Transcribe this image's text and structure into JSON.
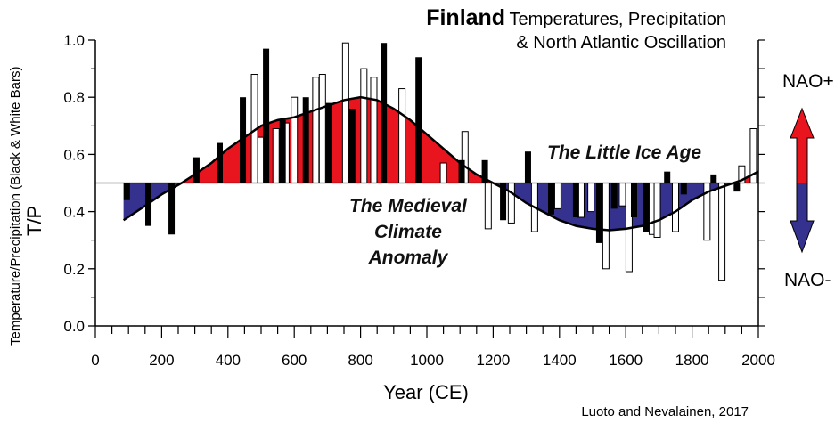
{
  "chart_data": {
    "type": "bar",
    "title": "Finland",
    "subtitle": "Temperatures, Precipitation",
    "subtitle2": "& North Atlantic Oscillation",
    "xlabel": "Year (CE)",
    "ylabel": "T/P",
    "ylabel_secondary": "Temperature/Precipitation (Black & White Bars)",
    "xlim": [
      0,
      2000
    ],
    "ylim": [
      0.0,
      1.0
    ],
    "baseline": 0.5,
    "x_ticks": [
      "0",
      "200",
      "400",
      "600",
      "800",
      "1000",
      "1200",
      "1400",
      "1600",
      "1800",
      "2000"
    ],
    "y_ticks": [
      "0.0",
      "0.2",
      "0.4",
      "0.6",
      "0.8",
      "1.0"
    ],
    "nao_labels": {
      "positive": "NAO+",
      "negative": "NAO-"
    },
    "colors": {
      "positive_fill": "#e8141e",
      "negative_fill": "#35318f",
      "arrow_up": "#e8141e",
      "arrow_down": "#35318f",
      "black_bar": "#000000",
      "white_bar": "#ffffff"
    },
    "annotations": {
      "mca_line1": "The Medieval",
      "mca_line2": "Climate",
      "mca_line3": "Anomaly",
      "lia": "The Little Ice Age"
    },
    "credit": "Luoto and Nevalainen, 2017",
    "series": [
      {
        "name": "NAO curve",
        "type": "area",
        "x": [
          85,
          150,
          200,
          260,
          300,
          350,
          400,
          450,
          500,
          550,
          600,
          650,
          700,
          750,
          800,
          850,
          900,
          950,
          1000,
          1050,
          1100,
          1150,
          1200,
          1250,
          1300,
          1350,
          1400,
          1450,
          1500,
          1550,
          1600,
          1650,
          1700,
          1750,
          1800,
          1850,
          1900,
          1950,
          2000
        ],
        "values": [
          0.37,
          0.42,
          0.46,
          0.5,
          0.53,
          0.57,
          0.62,
          0.66,
          0.7,
          0.72,
          0.73,
          0.75,
          0.77,
          0.79,
          0.8,
          0.79,
          0.76,
          0.72,
          0.67,
          0.62,
          0.57,
          0.53,
          0.5,
          0.47,
          0.43,
          0.4,
          0.37,
          0.35,
          0.34,
          0.335,
          0.34,
          0.35,
          0.37,
          0.4,
          0.44,
          0.47,
          0.49,
          0.51,
          0.54
        ]
      },
      {
        "name": "Temperature",
        "color": "black",
        "x": [
          95,
          160,
          230,
          305,
          375,
          445,
          515,
          565,
          635,
          705,
          775,
          870,
          975,
          1105,
          1175,
          1230,
          1305,
          1375,
          1450,
          1520,
          1565,
          1625,
          1660,
          1725,
          1775,
          1865,
          1935
        ],
        "values": [
          0.44,
          0.35,
          0.32,
          0.59,
          0.64,
          0.8,
          0.97,
          0.72,
          0.8,
          0.78,
          0.76,
          0.99,
          0.94,
          0.58,
          0.58,
          0.37,
          0.61,
          0.39,
          0.38,
          0.29,
          0.41,
          0.38,
          0.33,
          0.54,
          0.46,
          0.53,
          0.47
        ]
      },
      {
        "name": "Precipitation",
        "color": "white",
        "x": [
          480,
          500,
          545,
          575,
          600,
          665,
          685,
          755,
          810,
          840,
          925,
          1050,
          1115,
          1185,
          1255,
          1325,
          1395,
          1465,
          1495,
          1540,
          1590,
          1610,
          1680,
          1695,
          1750,
          1845,
          1890,
          1950,
          1985
        ],
        "values": [
          0.88,
          0.66,
          0.69,
          0.71,
          0.8,
          0.87,
          0.88,
          0.99,
          0.9,
          0.87,
          0.83,
          0.57,
          0.68,
          0.34,
          0.36,
          0.33,
          0.41,
          0.38,
          0.4,
          0.2,
          0.42,
          0.19,
          0.32,
          0.31,
          0.33,
          0.3,
          0.16,
          0.56,
          0.69
        ]
      }
    ]
  }
}
